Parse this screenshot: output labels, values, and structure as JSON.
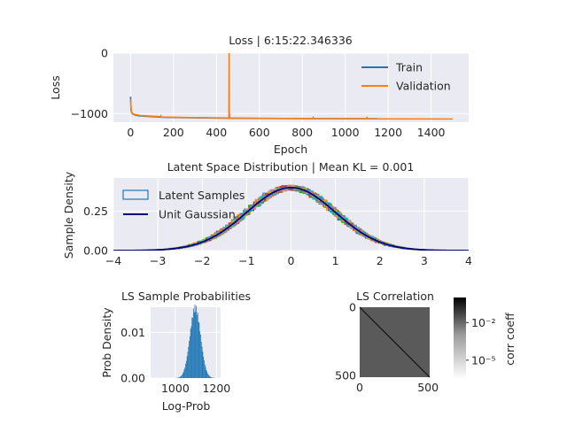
{
  "chart_data": [
    {
      "type": "line",
      "title": "Loss | 6:15:22.346336",
      "xlabel": "Epoch",
      "ylabel": "Loss",
      "xlim": [
        -80,
        1575
      ],
      "ylim": [
        -1140,
        0
      ],
      "xticks": [
        0,
        200,
        400,
        600,
        800,
        1000,
        1200,
        1400
      ],
      "yticks": [
        0,
        -1000
      ],
      "ytick_labels": [
        "0",
        "−1000"
      ],
      "grid": true,
      "legend": "top-right",
      "series": [
        {
          "name": "Train",
          "color": "#1f77b4",
          "x": [
            0,
            2,
            5,
            10,
            20,
            40,
            80,
            150,
            300,
            500,
            800,
            1000,
            1150
          ],
          "y": [
            -720,
            -940,
            -985,
            -1005,
            -1020,
            -1035,
            -1045,
            -1058,
            -1068,
            -1075,
            -1080,
            -1082,
            -1083
          ]
        },
        {
          "name": "Validation",
          "color": "#ff7f0e",
          "x": [
            0,
            3,
            8,
            20,
            50,
            140,
            141,
            142,
            300,
            452,
            458,
            459,
            460,
            461,
            462,
            465,
            600,
            850,
            851,
            852,
            1100,
            1101,
            1102,
            1300,
            1500
          ],
          "y": [
            -760,
            -950,
            -995,
            -1012,
            -1032,
            -1050,
            -1030,
            -1055,
            -1065,
            -1070,
            -1070,
            0,
            -1070,
            -1000,
            -1070,
            -1072,
            -1076,
            -1080,
            -1055,
            -1080,
            -1084,
            -1058,
            -1084,
            -1086,
            -1087
          ]
        }
      ]
    },
    {
      "type": "area",
      "title": "Latent Space Distribution | Mean KL = 0.001",
      "xlabel": "",
      "ylabel": "Sample Density",
      "xlim": [
        -4,
        4
      ],
      "ylim": [
        0,
        0.46
      ],
      "xticks": [
        -4,
        -3,
        -2,
        -1,
        0,
        1,
        2,
        3,
        4
      ],
      "xtick_labels": [
        "−4",
        "−3",
        "−2",
        "−1",
        "0",
        "1",
        "2",
        "3",
        "4"
      ],
      "yticks": [
        0,
        0.25
      ],
      "ytick_labels": [
        "0.00",
        "0.25"
      ],
      "grid": true,
      "legend": "top-left",
      "legend_entries": [
        {
          "label": "Latent Samples",
          "kind": "patch",
          "color": "#1f77b4"
        },
        {
          "label": "Unit Gaussian",
          "kind": "line",
          "color": "#00007f"
        }
      ],
      "sample_colors": [
        "#1f77b4",
        "#ff7f0e",
        "#2ca02c",
        "#d62728",
        "#9467bd",
        "#8c564b",
        "#e377c2",
        "#7f7f7f",
        "#bcbd22",
        "#17becf"
      ],
      "gaussian": {
        "mean": 0,
        "std": 1
      }
    },
    {
      "type": "bar",
      "title": "LS Sample Probabilities",
      "xlabel": "Log-Prob",
      "ylabel": "Prob Density",
      "xlim": [
        880,
        1220
      ],
      "ylim": [
        0,
        0.0155
      ],
      "xticks": [
        1000,
        1200
      ],
      "yticks": [
        0,
        0.01
      ],
      "ytick_labels": [
        "0.00",
        "0.01"
      ],
      "grid": true,
      "color": "#1f77b4",
      "histogram": {
        "mean": 1097,
        "std": 26
      }
    },
    {
      "type": "heatmap",
      "title": "LS Correlation",
      "size": 512,
      "xticks": [
        0,
        500
      ],
      "yticks": [
        0,
        500
      ],
      "diagonal_value": 1,
      "offdiag_level": 0.0001,
      "colorbar": {
        "label": "corr coeff",
        "ticks": [
          0.01,
          1e-05
        ],
        "tick_labels": [
          "10⁻²",
          "10⁻⁵"
        ],
        "range_log10": [
          -6.5,
          0
        ]
      }
    }
  ]
}
